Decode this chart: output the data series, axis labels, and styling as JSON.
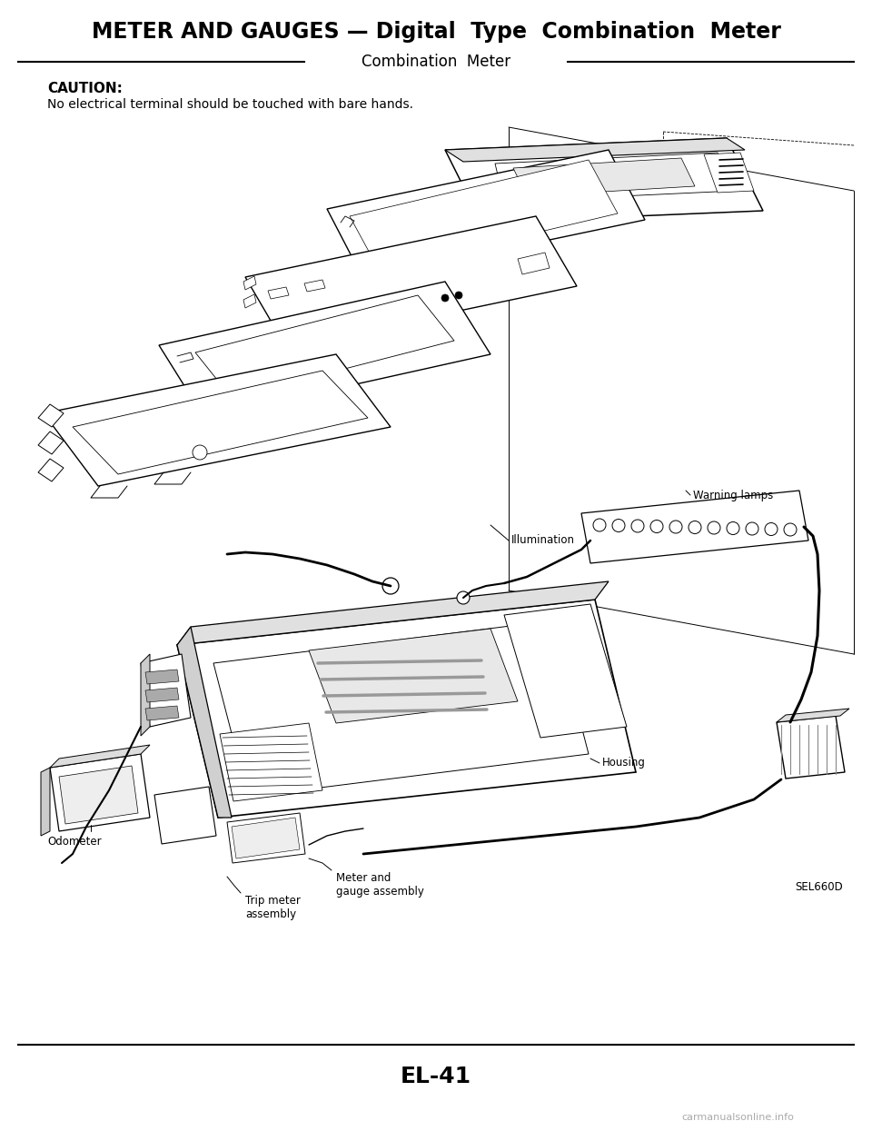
{
  "title": "METER AND GAUGES — Digital  Type  Combination  Meter",
  "subtitle": "Combination  Meter",
  "caution_title": "CAUTION:",
  "caution_text": "No electrical terminal should be touched with bare hands.",
  "page_number": "EL-41",
  "watermark": "carmanualsonline.info",
  "diagram_ref": "SEL660D",
  "bg_color": "#ffffff",
  "text_color": "#000000",
  "title_fontsize": 17,
  "subtitle_fontsize": 12,
  "caution_fontsize": 10,
  "page_fontsize": 16
}
